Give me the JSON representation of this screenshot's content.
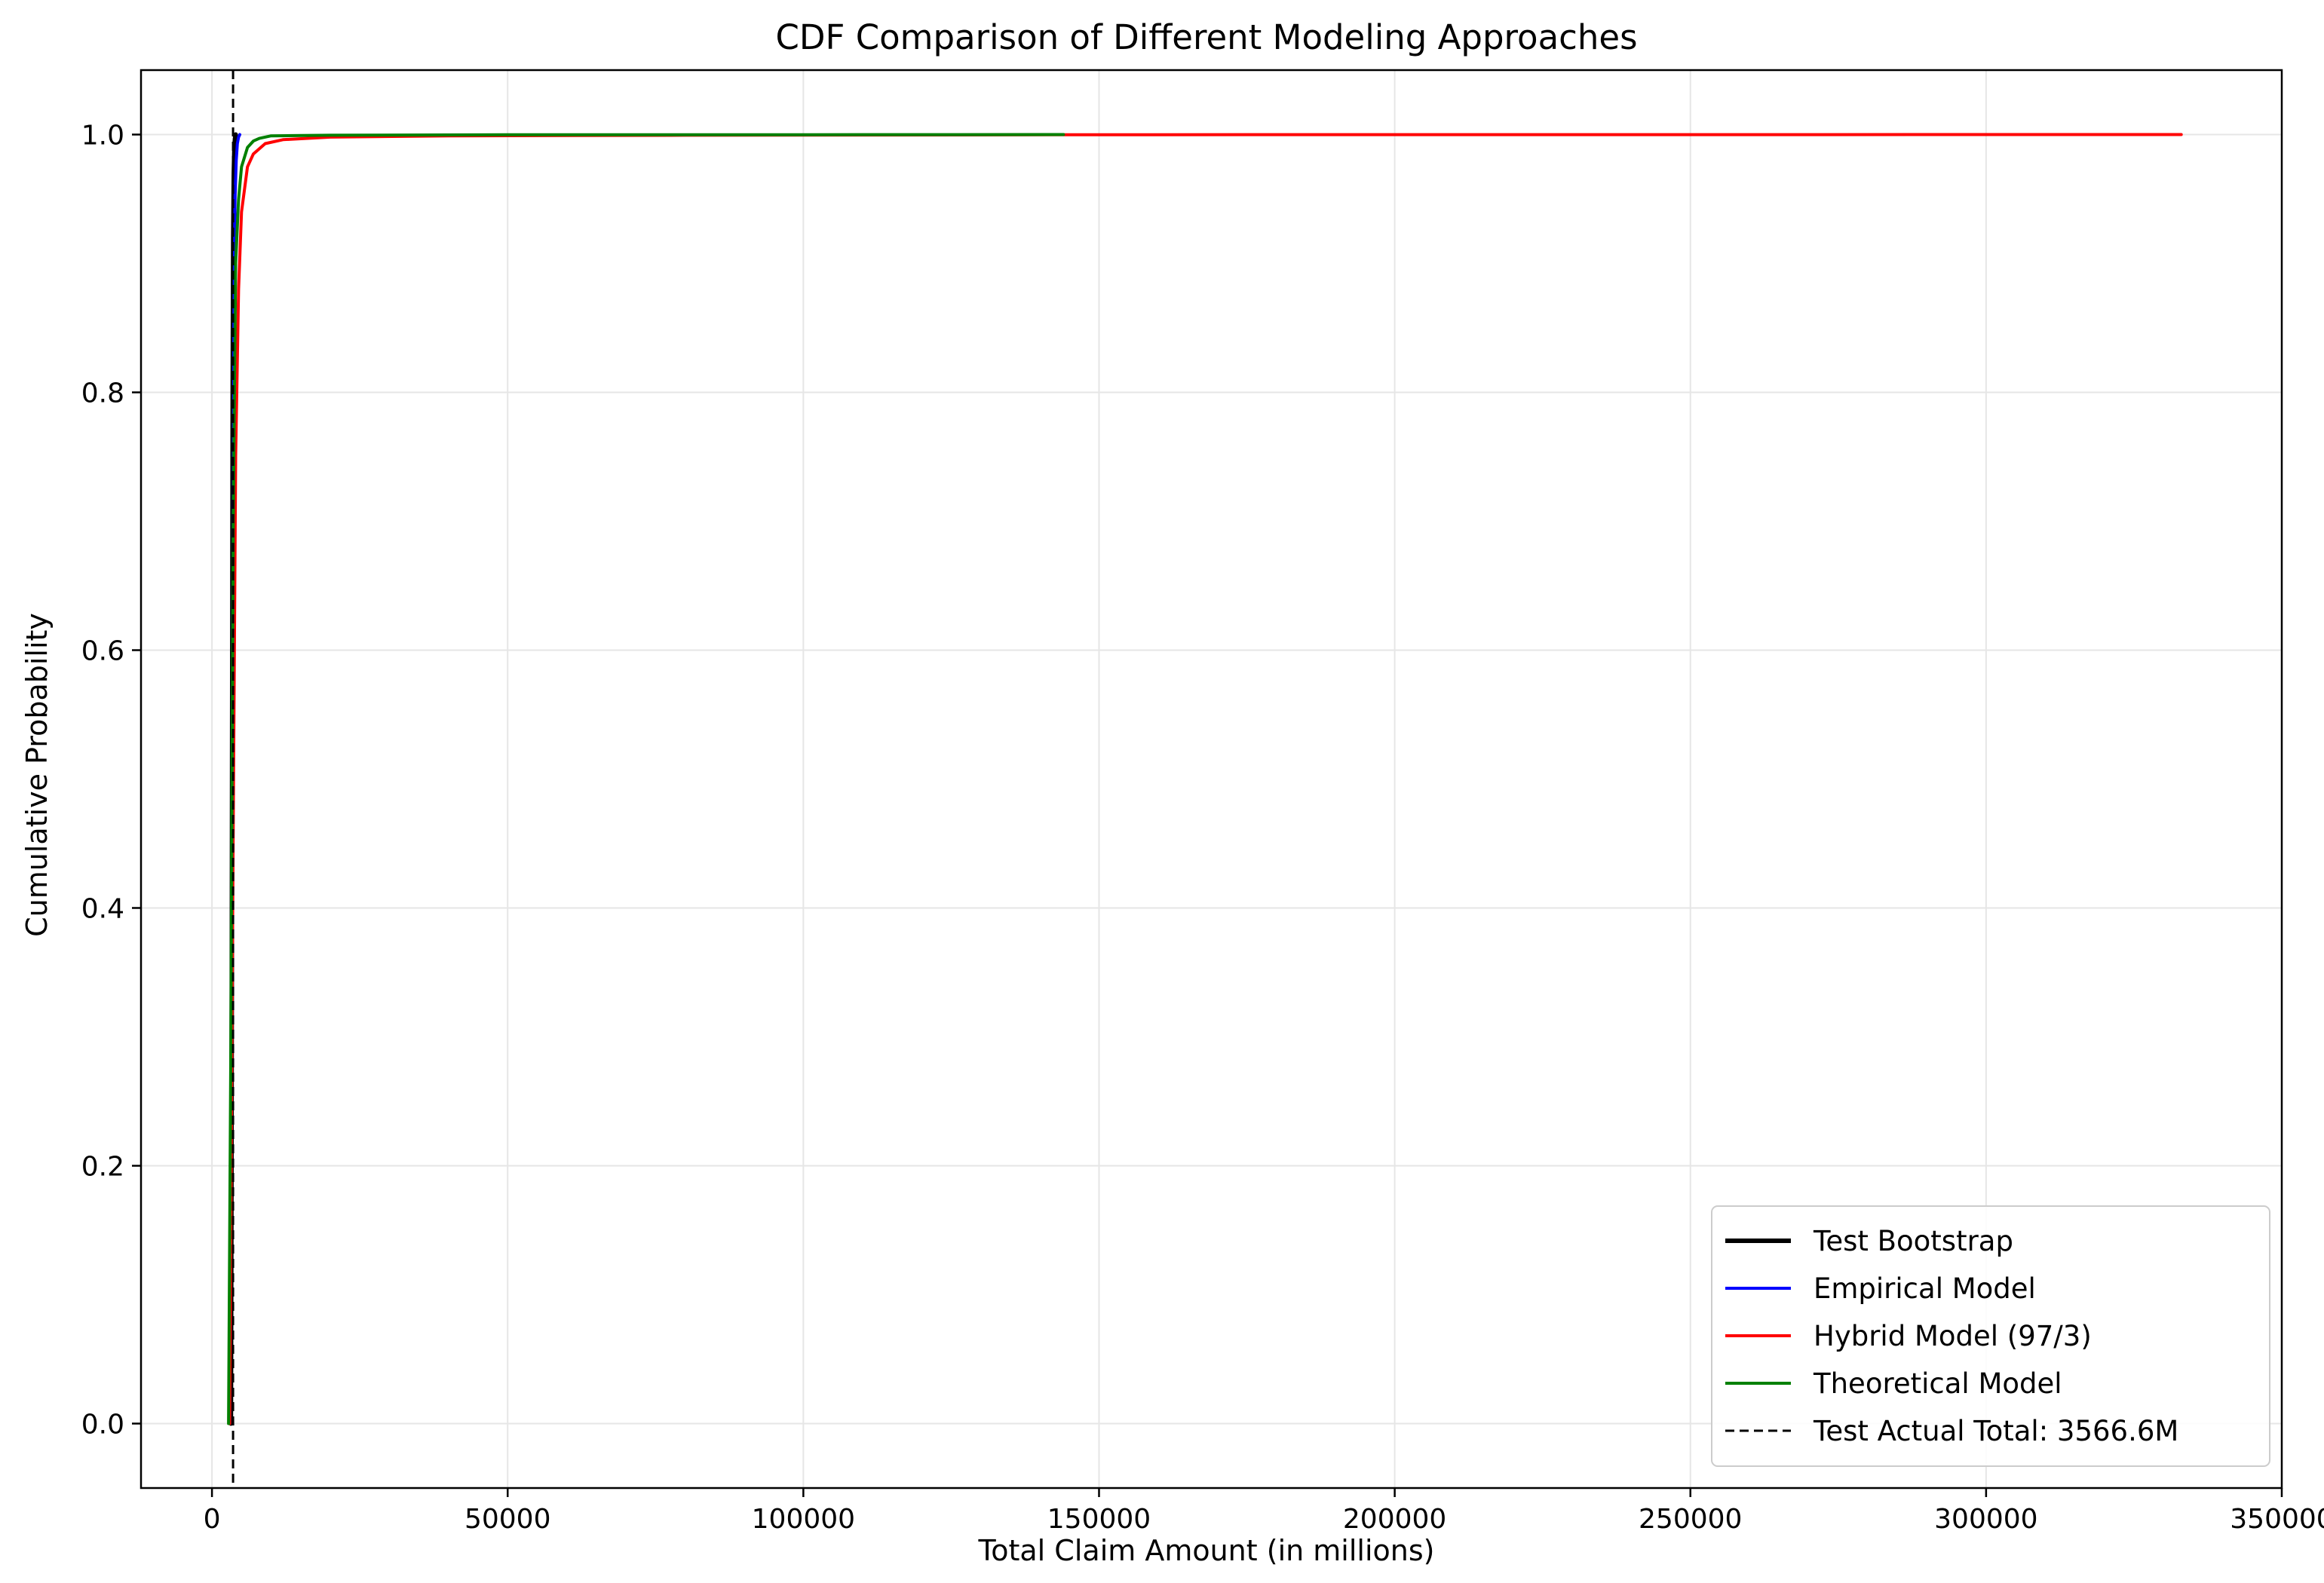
{
  "chart_data": {
    "type": "line",
    "title": "CDF Comparison of Different Modeling Approaches",
    "xlabel": "Total Claim Amount (in millions)",
    "ylabel": "Cumulative Probability",
    "xlim": [
      -12000,
      350000
    ],
    "ylim": [
      -0.05,
      1.05
    ],
    "x_ticks": [
      0,
      50000,
      100000,
      150000,
      200000,
      250000,
      300000,
      350000
    ],
    "x_tick_labels": [
      "0",
      "50000",
      "100000",
      "150000",
      "200000",
      "250000",
      "300000",
      "350000"
    ],
    "y_ticks": [
      0.0,
      0.2,
      0.4,
      0.6,
      0.8,
      1.0
    ],
    "y_tick_labels": [
      "0.0",
      "0.2",
      "0.4",
      "0.6",
      "0.8",
      "1.0"
    ],
    "grid": true,
    "legend_position": "lower-right",
    "series": [
      {
        "name": "Test Bootstrap",
        "color": "#000000",
        "width": 6,
        "x": [
          3200,
          3300,
          3400,
          3500,
          3600,
          3700,
          3800,
          3900,
          4000
        ],
        "y": [
          0.0,
          0.2,
          0.5,
          0.8,
          0.92,
          0.97,
          0.99,
          0.997,
          1.0
        ]
      },
      {
        "name": "Empirical Model",
        "color": "#0000ff",
        "width": 4,
        "x": [
          3000,
          3300,
          3500,
          3700,
          3900,
          4100,
          4300,
          4500,
          4700
        ],
        "y": [
          0.0,
          0.3,
          0.6,
          0.85,
          0.95,
          0.98,
          0.993,
          0.998,
          1.0
        ]
      },
      {
        "name": "Hybrid Model (97/3)",
        "color": "#ff0000",
        "width": 4,
        "x": [
          3000,
          3500,
          4000,
          4500,
          5000,
          6000,
          7000,
          9000,
          12000,
          20000,
          40000,
          80000,
          150000,
          333000
        ],
        "y": [
          0.0,
          0.4,
          0.75,
          0.88,
          0.94,
          0.975,
          0.985,
          0.993,
          0.996,
          0.998,
          0.999,
          0.9995,
          0.9999,
          1.0
        ]
      },
      {
        "name": "Theoretical Model",
        "color": "#008000",
        "width": 4,
        "x": [
          2800,
          3200,
          3600,
          4000,
          4500,
          5000,
          6000,
          7000,
          8000,
          10000,
          20000,
          50000,
          100000,
          144000
        ],
        "y": [
          0.0,
          0.3,
          0.7,
          0.9,
          0.95,
          0.975,
          0.99,
          0.995,
          0.997,
          0.999,
          0.9995,
          0.9998,
          0.9999,
          1.0
        ]
      }
    ],
    "reference_line": {
      "name": "Test Actual Total: 3566.6M",
      "x": 3566.6,
      "color": "#000000",
      "style": "dashed"
    }
  }
}
